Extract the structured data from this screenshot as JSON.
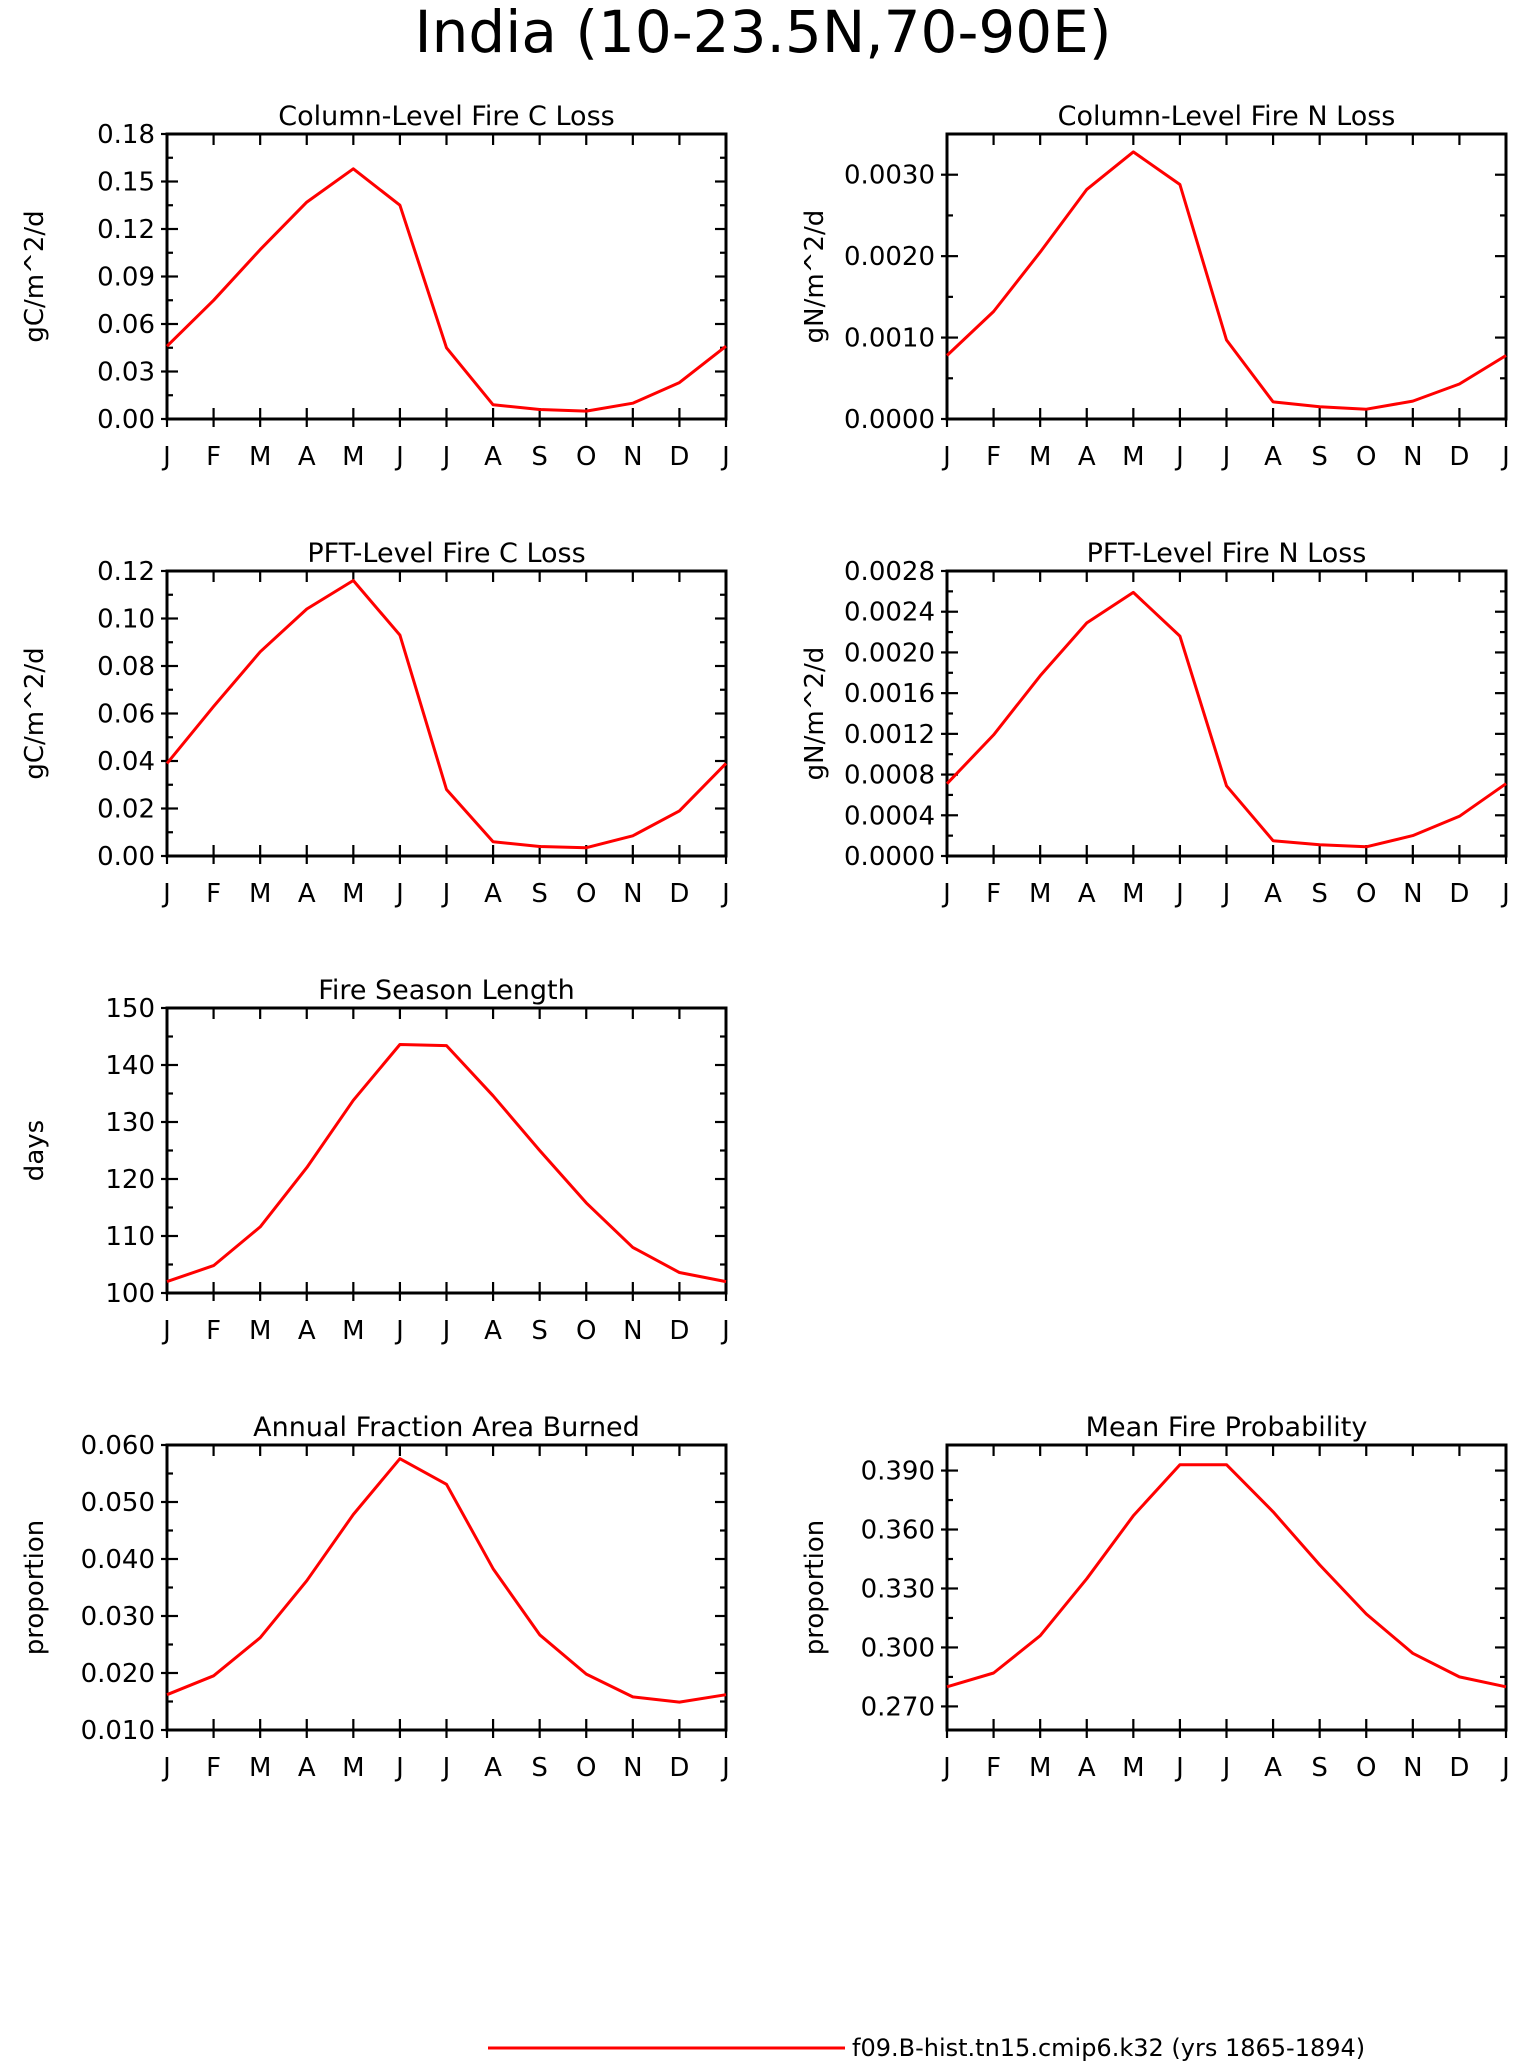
{
  "figure": {
    "title": "India (10-23.5N,70-90E)",
    "legend": {
      "label": "f09.B-hist.tn15.cmip6.k32 (yrs 1865-1894)",
      "color": "#ff0000"
    }
  },
  "chart_data": [
    {
      "type": "line",
      "title": "Column-Level Fire C Loss",
      "xlabel": "",
      "ylabel": "gC/m^2/d",
      "categories": [
        "J",
        "F",
        "M",
        "A",
        "M",
        "J",
        "J",
        "A",
        "S",
        "O",
        "N",
        "D",
        "J"
      ],
      "ylim": [
        0,
        0.18
      ],
      "yticks": [
        "0.00",
        "0.03",
        "0.06",
        "0.09",
        "0.12",
        "0.15",
        "0.18"
      ],
      "series": [
        {
          "color": "#ff0000",
          "values": [
            0.046,
            0.075,
            0.107,
            0.137,
            0.158,
            0.135,
            0.045,
            0.009,
            0.006,
            0.005,
            0.01,
            0.023,
            0.046
          ]
        }
      ]
    },
    {
      "type": "line",
      "title": "Column-Level Fire N Loss",
      "xlabel": "",
      "ylabel": "gN/m^2/d",
      "categories": [
        "J",
        "F",
        "M",
        "A",
        "M",
        "J",
        "J",
        "A",
        "S",
        "O",
        "N",
        "D",
        "J"
      ],
      "ylim": [
        0,
        0.0035
      ],
      "yticks": [
        "0.0000",
        "0.0010",
        "0.0020",
        "0.0030"
      ],
      "series": [
        {
          "color": "#ff0000",
          "values": [
            0.00078,
            0.00132,
            0.00205,
            0.00282,
            0.00328,
            0.00288,
            0.00097,
            0.00021,
            0.00015,
            0.00012,
            0.00022,
            0.00043,
            0.00078
          ]
        }
      ]
    },
    {
      "type": "line",
      "title": "PFT-Level Fire C Loss",
      "xlabel": "",
      "ylabel": "gC/m^2/d",
      "categories": [
        "J",
        "F",
        "M",
        "A",
        "M",
        "J",
        "J",
        "A",
        "S",
        "O",
        "N",
        "D",
        "J"
      ],
      "ylim": [
        0,
        0.12
      ],
      "yticks": [
        "0.00",
        "0.02",
        "0.04",
        "0.06",
        "0.08",
        "0.10",
        "0.12"
      ],
      "series": [
        {
          "color": "#ff0000",
          "values": [
            0.039,
            0.063,
            0.086,
            0.104,
            0.116,
            0.093,
            0.028,
            0.006,
            0.004,
            0.0035,
            0.0085,
            0.019,
            0.039
          ]
        }
      ]
    },
    {
      "type": "line",
      "title": "PFT-Level Fire N Loss",
      "xlabel": "",
      "ylabel": "gN/m^2/d",
      "categories": [
        "J",
        "F",
        "M",
        "A",
        "M",
        "J",
        "J",
        "A",
        "S",
        "O",
        "N",
        "D",
        "J"
      ],
      "ylim": [
        0,
        0.0028
      ],
      "yticks": [
        "0.0000",
        "0.0004",
        "0.0008",
        "0.0012",
        "0.0016",
        "0.0020",
        "0.0024",
        "0.0028"
      ],
      "series": [
        {
          "color": "#ff0000",
          "values": [
            0.00071,
            0.00119,
            0.00177,
            0.00229,
            0.00259,
            0.00216,
            0.00069,
            0.00015,
            0.00011,
            9e-05,
            0.0002,
            0.00039,
            0.00071
          ]
        }
      ]
    },
    {
      "type": "line",
      "title": "Fire Season Length",
      "xlabel": "",
      "ylabel": "days",
      "categories": [
        "J",
        "F",
        "M",
        "A",
        "M",
        "J",
        "J",
        "A",
        "S",
        "O",
        "N",
        "D",
        "J"
      ],
      "ylim": [
        100,
        150
      ],
      "yticks": [
        "100",
        "110",
        "120",
        "130",
        "140",
        "150"
      ],
      "series": [
        {
          "color": "#ff0000",
          "values": [
            102.0,
            104.8,
            111.6,
            122.0,
            133.8,
            143.6,
            143.4,
            134.6,
            125.0,
            115.8,
            108.0,
            103.6,
            102.0
          ]
        }
      ]
    },
    {
      "type": "line",
      "title": "Annual Fraction Area Burned",
      "xlabel": "",
      "ylabel": "proportion",
      "categories": [
        "J",
        "F",
        "M",
        "A",
        "M",
        "J",
        "J",
        "A",
        "S",
        "O",
        "N",
        "D",
        "J"
      ],
      "ylim": [
        0.01,
        0.06
      ],
      "yticks": [
        "0.010",
        "0.020",
        "0.030",
        "0.040",
        "0.050",
        "0.060"
      ],
      "series": [
        {
          "color": "#ff0000",
          "values": [
            0.0162,
            0.0195,
            0.0262,
            0.0362,
            0.0478,
            0.0576,
            0.0531,
            0.0383,
            0.0267,
            0.0198,
            0.0158,
            0.0149,
            0.0162
          ]
        }
      ]
    },
    {
      "type": "line",
      "title": "Mean Fire Probability",
      "xlabel": "",
      "ylabel": "proportion",
      "categories": [
        "J",
        "F",
        "M",
        "A",
        "M",
        "J",
        "J",
        "A",
        "S",
        "O",
        "N",
        "D",
        "J"
      ],
      "ylim": [
        0.258,
        0.403
      ],
      "yticks": [
        "0.270",
        "0.300",
        "0.330",
        "0.360",
        "0.390"
      ],
      "series": [
        {
          "color": "#ff0000",
          "values": [
            0.28,
            0.287,
            0.306,
            0.335,
            0.367,
            0.393,
            0.393,
            0.369,
            0.342,
            0.317,
            0.297,
            0.285,
            0.28
          ]
        }
      ]
    }
  ]
}
